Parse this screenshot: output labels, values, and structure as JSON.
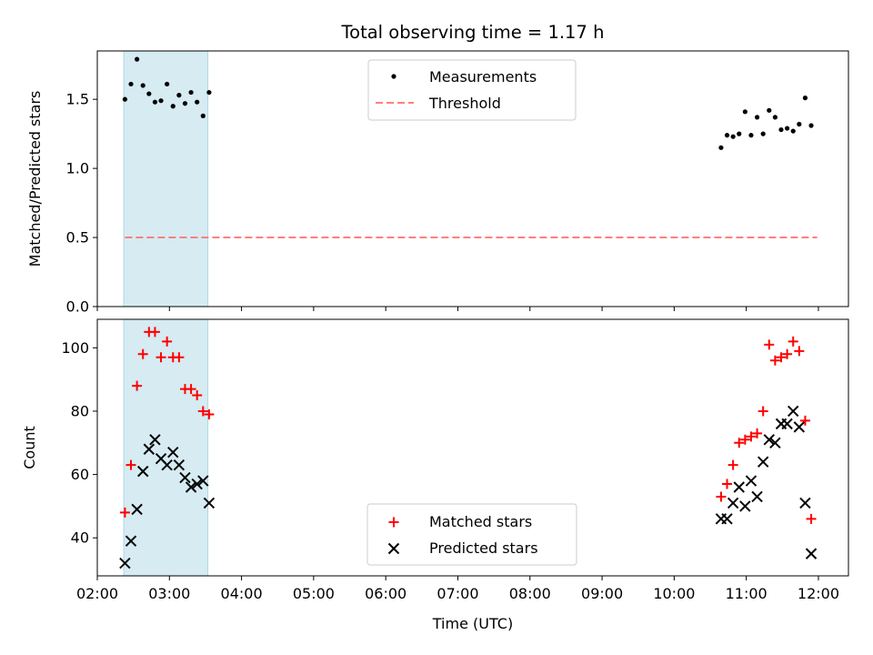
{
  "chart_data": [
    {
      "type": "scatter",
      "title": "Total observing time = 1.17 h",
      "xlabel": "",
      "ylabel": "Matched/Predicted stars",
      "xlim": [
        "02:00",
        "12:25"
      ],
      "ylim": [
        0,
        1.85
      ],
      "yticks": [
        0.0,
        0.5,
        1.0,
        1.5
      ],
      "ytick_labels": [
        "0.0",
        "0.5",
        "1.0",
        "1.5"
      ],
      "shaded_span": {
        "x": [
          "02:22",
          "03:32"
        ],
        "color": "#add8e6"
      },
      "legend_placement": "upper center",
      "series": [
        {
          "name": "Measurements",
          "marker": "dot",
          "color": "#000000",
          "points": [
            [
              "02:23",
              1.5
            ],
            [
              "02:28",
              1.61
            ],
            [
              "02:33",
              1.79
            ],
            [
              "02:38",
              1.6
            ],
            [
              "02:43",
              1.54
            ],
            [
              "02:48",
              1.48
            ],
            [
              "02:53",
              1.49
            ],
            [
              "02:58",
              1.61
            ],
            [
              "03:03",
              1.45
            ],
            [
              "03:08",
              1.53
            ],
            [
              "03:13",
              1.47
            ],
            [
              "03:18",
              1.55
            ],
            [
              "03:23",
              1.48
            ],
            [
              "03:28",
              1.38
            ],
            [
              "03:33",
              1.55
            ],
            [
              "10:39",
              1.15
            ],
            [
              "10:44",
              1.24
            ],
            [
              "10:49",
              1.23
            ],
            [
              "10:54",
              1.25
            ],
            [
              "10:59",
              1.41
            ],
            [
              "11:04",
              1.24
            ],
            [
              "11:09",
              1.37
            ],
            [
              "11:14",
              1.25
            ],
            [
              "11:19",
              1.42
            ],
            [
              "11:24",
              1.37
            ],
            [
              "11:29",
              1.28
            ],
            [
              "11:34",
              1.29
            ],
            [
              "11:39",
              1.27
            ],
            [
              "11:44",
              1.32
            ],
            [
              "11:49",
              1.51
            ],
            [
              "11:54",
              1.31
            ]
          ]
        },
        {
          "name": "Threshold",
          "line": "dashed",
          "color": "#ff7f7f",
          "points": [
            [
              "02:23",
              0.5
            ],
            [
              "11:59",
              0.5
            ]
          ]
        }
      ]
    },
    {
      "type": "scatter",
      "title": "",
      "xlabel": "Time (UTC)",
      "ylabel": "Count",
      "xlim": [
        "02:00",
        "12:25"
      ],
      "xticks": [
        "02:00",
        "03:00",
        "04:00",
        "05:00",
        "06:00",
        "07:00",
        "08:00",
        "09:00",
        "10:00",
        "11:00",
        "12:00"
      ],
      "ylim": [
        28,
        109
      ],
      "yticks": [
        40,
        60,
        80,
        100
      ],
      "ytick_labels": [
        "40",
        "60",
        "80",
        "100"
      ],
      "shaded_span": {
        "x": [
          "02:22",
          "03:32"
        ],
        "color": "#add8e6"
      },
      "legend_placement": "lower center",
      "series": [
        {
          "name": "Matched stars",
          "marker": "plus",
          "color": "#ff0000",
          "points": [
            [
              "02:23",
              48
            ],
            [
              "02:28",
              63
            ],
            [
              "02:33",
              88
            ],
            [
              "02:38",
              98
            ],
            [
              "02:43",
              105
            ],
            [
              "02:48",
              105
            ],
            [
              "02:53",
              97
            ],
            [
              "02:58",
              102
            ],
            [
              "03:03",
              97
            ],
            [
              "03:08",
              97
            ],
            [
              "03:13",
              87
            ],
            [
              "03:18",
              87
            ],
            [
              "03:23",
              85
            ],
            [
              "03:28",
              80
            ],
            [
              "03:33",
              79
            ],
            [
              "10:39",
              53
            ],
            [
              "10:44",
              57
            ],
            [
              "10:49",
              63
            ],
            [
              "10:54",
              70
            ],
            [
              "10:59",
              71
            ],
            [
              "11:04",
              72
            ],
            [
              "11:09",
              73
            ],
            [
              "11:14",
              80
            ],
            [
              "11:19",
              101
            ],
            [
              "11:24",
              96
            ],
            [
              "11:29",
              97
            ],
            [
              "11:34",
              98
            ],
            [
              "11:39",
              102
            ],
            [
              "11:44",
              99
            ],
            [
              "11:49",
              77
            ],
            [
              "11:54",
              46
            ]
          ]
        },
        {
          "name": "Predicted stars",
          "marker": "x",
          "color": "#000000",
          "points": [
            [
              "02:23",
              32
            ],
            [
              "02:28",
              39
            ],
            [
              "02:33",
              49
            ],
            [
              "02:38",
              61
            ],
            [
              "02:43",
              68
            ],
            [
              "02:48",
              71
            ],
            [
              "02:53",
              65
            ],
            [
              "02:58",
              63
            ],
            [
              "03:03",
              67
            ],
            [
              "03:08",
              63
            ],
            [
              "03:13",
              59
            ],
            [
              "03:18",
              56
            ],
            [
              "03:23",
              57
            ],
            [
              "03:28",
              58
            ],
            [
              "03:33",
              51
            ],
            [
              "10:39",
              46
            ],
            [
              "10:44",
              46
            ],
            [
              "10:49",
              51
            ],
            [
              "10:54",
              56
            ],
            [
              "10:59",
              50
            ],
            [
              "11:04",
              58
            ],
            [
              "11:09",
              53
            ],
            [
              "11:14",
              64
            ],
            [
              "11:19",
              71
            ],
            [
              "11:24",
              70
            ],
            [
              "11:29",
              76
            ],
            [
              "11:34",
              76
            ],
            [
              "11:39",
              80
            ],
            [
              "11:44",
              75
            ],
            [
              "11:49",
              51
            ],
            [
              "11:54",
              35
            ]
          ]
        }
      ]
    }
  ]
}
